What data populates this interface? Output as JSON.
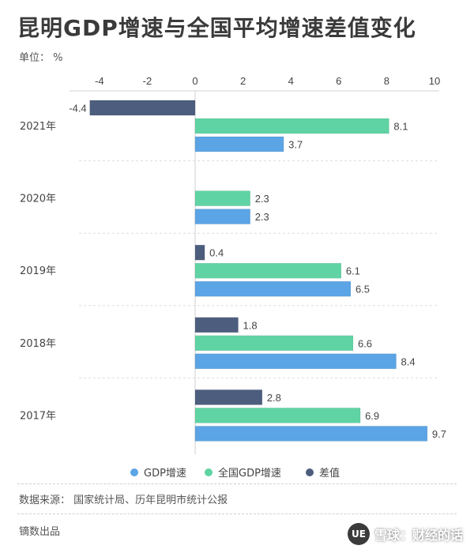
{
  "title": "昆明GDP增速与全国平均增速差值变化",
  "unit": "单位： %",
  "source": "数据来源： 国家统计局、历年昆明市统计公报",
  "producer": "镝数出品",
  "watermark": "雪球：财经的话",
  "watermark_logo": "UE",
  "colors": {
    "gdp": "#5ba4e5",
    "national": "#5fd3a3",
    "diff": "#4d5d7d"
  },
  "chart_data": {
    "type": "bar",
    "orientation": "horizontal",
    "categories": [
      "2021年",
      "2020年",
      "2019年",
      "2018年",
      "2017年"
    ],
    "series": [
      {
        "name": "差值",
        "values": [
          -4.4,
          null,
          0.4,
          1.8,
          2.8
        ]
      },
      {
        "name": "全国GDP增速",
        "values": [
          8.1,
          2.3,
          6.1,
          6.6,
          6.9
        ]
      },
      {
        "name": "GDP增速",
        "values": [
          3.7,
          2.3,
          6.5,
          8.4,
          9.7
        ]
      }
    ],
    "value_labels": [
      [
        "-4.4",
        "",
        "0.4",
        "1.8",
        "2.8"
      ],
      [
        "8.1",
        "2.3",
        "6.1",
        "6.6",
        "6.9"
      ],
      [
        "3.7",
        "2.3",
        "6.5",
        "8.4",
        "9.7"
      ]
    ],
    "xlim": [
      -4,
      10
    ],
    "xticks": [
      "-4",
      "-2",
      "0",
      "2",
      "4",
      "6",
      "8",
      "10"
    ],
    "xtick_values": [
      -4,
      -2,
      0,
      2,
      4,
      6,
      8,
      10
    ],
    "legend": [
      "GDP增速",
      "全国GDP增速",
      "差值"
    ],
    "legend_position": "bottom"
  }
}
